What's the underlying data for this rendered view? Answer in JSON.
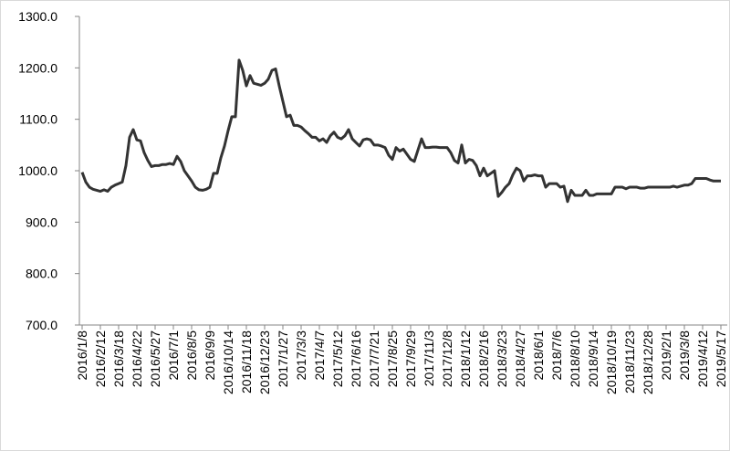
{
  "chart_data": {
    "type": "line",
    "color": "#333333",
    "categories": [
      "2016/1/8",
      null,
      null,
      null,
      null,
      "2016/2/12",
      null,
      null,
      null,
      null,
      "2016/3/18",
      null,
      null,
      null,
      null,
      "2016/4/22",
      null,
      null,
      null,
      null,
      "2016/5/27",
      null,
      null,
      null,
      null,
      "2016/7/1",
      null,
      null,
      null,
      null,
      "2016/8/5",
      null,
      null,
      null,
      null,
      "2016/9/9",
      null,
      null,
      null,
      null,
      "2016/10/14",
      null,
      null,
      null,
      null,
      "2016/11/18",
      null,
      null,
      null,
      null,
      "2016/12/23",
      null,
      null,
      null,
      null,
      "2017/1/27",
      null,
      null,
      null,
      null,
      "2017/3/3",
      null,
      null,
      null,
      null,
      "2017/4/7",
      null,
      null,
      null,
      null,
      "2017/5/12",
      null,
      null,
      null,
      null,
      "2017/6/16",
      null,
      null,
      null,
      null,
      "2017/7/21",
      null,
      null,
      null,
      null,
      "2017/8/25",
      null,
      null,
      null,
      null,
      "2017/9/29",
      null,
      null,
      null,
      null,
      "2017/11/3",
      null,
      null,
      null,
      null,
      "2017/12/8",
      null,
      null,
      null,
      null,
      "2018/1/12",
      null,
      null,
      null,
      null,
      "2018/2/16",
      null,
      null,
      null,
      null,
      "2018/3/23",
      null,
      null,
      null,
      null,
      "2018/4/27",
      null,
      null,
      null,
      null,
      "2018/6/1",
      null,
      null,
      null,
      null,
      "2018/7/6",
      null,
      null,
      null,
      null,
      "2018/8/10",
      null,
      null,
      null,
      null,
      "2018/9/14",
      null,
      null,
      null,
      null,
      "2018/10/19",
      null,
      null,
      null,
      null,
      "2018/11/23",
      null,
      null,
      null,
      null,
      "2018/12/28",
      null,
      null,
      null,
      null,
      "2019/2/1",
      null,
      null,
      null,
      null,
      "2019/3/8",
      null,
      null,
      null,
      null,
      "2019/4/12",
      null,
      null,
      null,
      null,
      "2019/5/17"
    ],
    "values": [
      997,
      978,
      968,
      964,
      962,
      960,
      963,
      960,
      968,
      972,
      975,
      978,
      1010,
      1065,
      1080,
      1060,
      1058,
      1035,
      1020,
      1008,
      1010,
      1010,
      1012,
      1012,
      1014,
      1012,
      1028,
      1018,
      1000,
      990,
      980,
      968,
      963,
      962,
      964,
      968,
      995,
      995,
      1025,
      1048,
      1078,
      1105,
      1105,
      1215,
      1195,
      1165,
      1185,
      1170,
      1168,
      1166,
      1170,
      1178,
      1195,
      1198,
      1165,
      1135,
      1105,
      1108,
      1088,
      1088,
      1085,
      1078,
      1072,
      1065,
      1065,
      1058,
      1062,
      1055,
      1068,
      1075,
      1065,
      1062,
      1068,
      1080,
      1062,
      1055,
      1048,
      1060,
      1062,
      1060,
      1050,
      1050,
      1048,
      1045,
      1030,
      1022,
      1045,
      1038,
      1042,
      1032,
      1022,
      1018,
      1040,
      1062,
      1045,
      1045,
      1046,
      1046,
      1045,
      1045,
      1045,
      1035,
      1020,
      1015,
      1050,
      1015,
      1022,
      1020,
      1010,
      990,
      1005,
      990,
      995,
      1000,
      950,
      958,
      968,
      975,
      992,
      1005,
      1000,
      980,
      990,
      990,
      992,
      990,
      990,
      968,
      975,
      975,
      975,
      968,
      970,
      940,
      962,
      952,
      952,
      952,
      962,
      952,
      952,
      955,
      955,
      955,
      955,
      955,
      968,
      968,
      968,
      965,
      968,
      968,
      968,
      966,
      966,
      968,
      968,
      968,
      968,
      968,
      968,
      968,
      970,
      968,
      970,
      972,
      972,
      975,
      985,
      985,
      985,
      985,
      982,
      980,
      980,
      980
    ],
    "ylim": [
      700,
      1300
    ],
    "yticks": [
      {
        "value": 700,
        "label": "700.0"
      },
      {
        "value": 800,
        "label": "800.0"
      },
      {
        "value": 900,
        "label": "900.0"
      },
      {
        "value": 1000,
        "label": "1000.0"
      },
      {
        "value": 1100,
        "label": "1100.0"
      },
      {
        "value": 1200,
        "label": "1200.0"
      },
      {
        "value": 1300,
        "label": "1300.0"
      }
    ]
  }
}
